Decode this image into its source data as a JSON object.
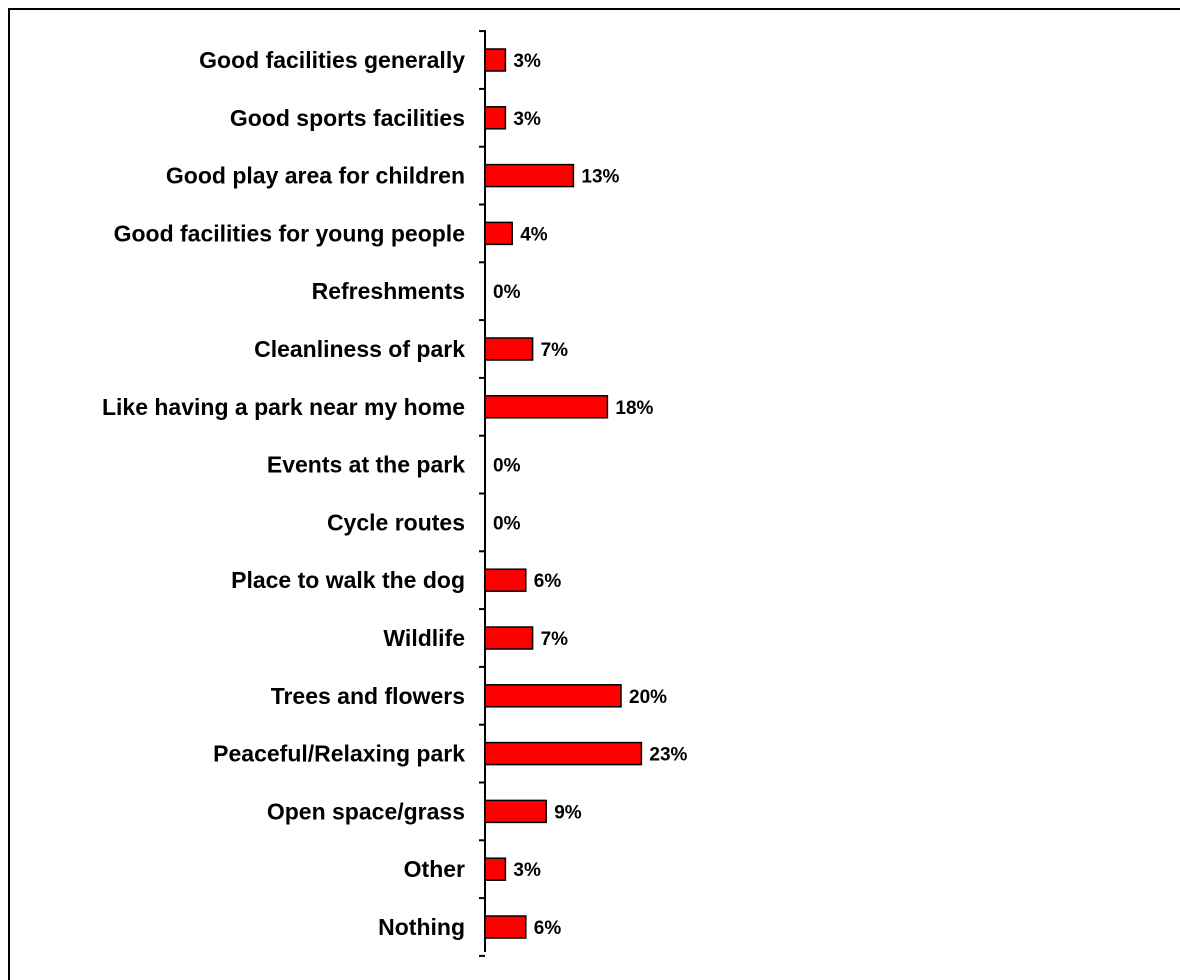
{
  "chart_data": {
    "type": "bar",
    "orientation": "horizontal",
    "categories": [
      "Good facilities generally",
      "Good sports facilities",
      "Good play area for children",
      "Good facilities for young people",
      "Refreshments",
      "Cleanliness of park",
      "Like having a park near my home",
      "Events at the park",
      "Cycle routes",
      "Place to walk the dog",
      "Wildlife",
      "Trees and flowers",
      "Peaceful/Relaxing park",
      "Open space/grass",
      "Other",
      "Nothing"
    ],
    "values": [
      3,
      3,
      13,
      4,
      0,
      7,
      18,
      0,
      0,
      6,
      7,
      20,
      23,
      9,
      3,
      6
    ],
    "value_labels": [
      "3%",
      "3%",
      "13%",
      "4%",
      "0%",
      "7%",
      "18%",
      "0%",
      "0%",
      "6%",
      "7%",
      "20%",
      "23%",
      "9%",
      "3%",
      "6%"
    ],
    "unit": "%",
    "title": "",
    "xlabel": "",
    "ylabel": "",
    "xlim": [
      0,
      100
    ],
    "grid": false,
    "legend": "none",
    "colors": {
      "bar_fill": "#ff0000",
      "bar_stroke": "#000000",
      "axis": "#000000",
      "frame": "#000000",
      "background": "#ffffff"
    }
  }
}
